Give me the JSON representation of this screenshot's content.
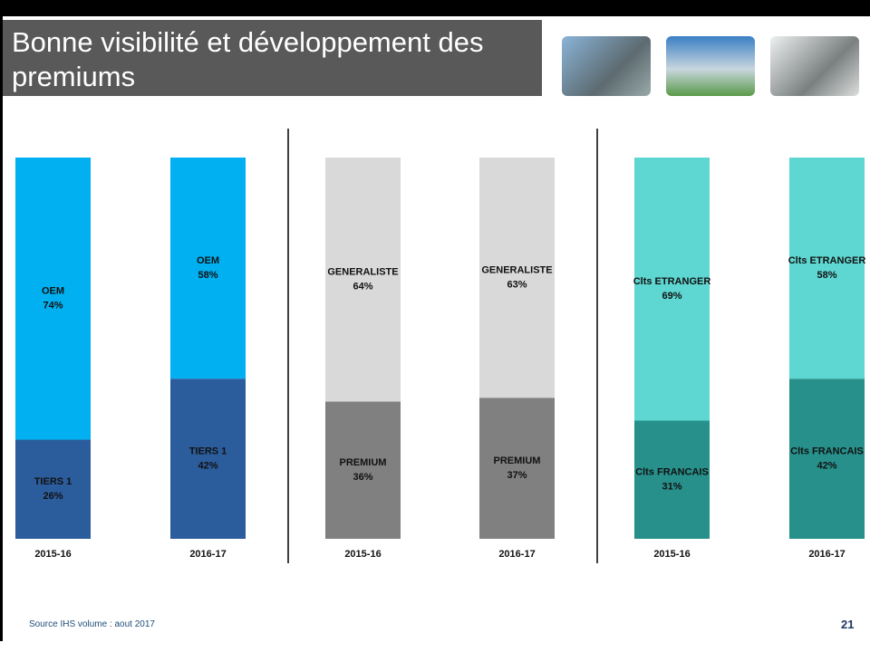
{
  "header": {
    "title": "Bonne visibilité et développement des premiums"
  },
  "footer": {
    "source": "Source IHS volume : aout 2017",
    "page": "21"
  },
  "chart_data": [
    {
      "type": "stacked_bar",
      "categories": [
        "2015-16",
        "2016-17"
      ],
      "ylim": [
        0,
        100
      ],
      "series": [
        {
          "name": "TIERS 1",
          "color": "#2b5c9b",
          "values": [
            26,
            42
          ],
          "value_labels": [
            "26%",
            "42%"
          ]
        },
        {
          "name": "OEM",
          "color": "#00b0f0",
          "values": [
            74,
            58
          ],
          "value_labels": [
            "74%",
            "58%"
          ]
        }
      ]
    },
    {
      "type": "stacked_bar",
      "categories": [
        "2015-16",
        "2016-17"
      ],
      "ylim": [
        0,
        100
      ],
      "series": [
        {
          "name": "PREMIUM",
          "color": "#808080",
          "values": [
            36,
            37
          ],
          "value_labels": [
            "36%",
            "37%"
          ]
        },
        {
          "name": "GENERALISTE",
          "color": "#d9d9d9",
          "values": [
            64,
            63
          ],
          "value_labels": [
            "64%",
            "63%"
          ]
        }
      ]
    },
    {
      "type": "stacked_bar",
      "categories": [
        "2015-16",
        "2016-17"
      ],
      "ylim": [
        0,
        100
      ],
      "series": [
        {
          "name": "Clts FRANCAIS",
          "color": "#27908b",
          "values": [
            31,
            42
          ],
          "value_labels": [
            "31%",
            "42%"
          ]
        },
        {
          "name": "Clts ETRANGER",
          "color": "#5ed6d1",
          "values": [
            69,
            58
          ],
          "value_labels": [
            "69%",
            "58%"
          ]
        }
      ]
    }
  ]
}
